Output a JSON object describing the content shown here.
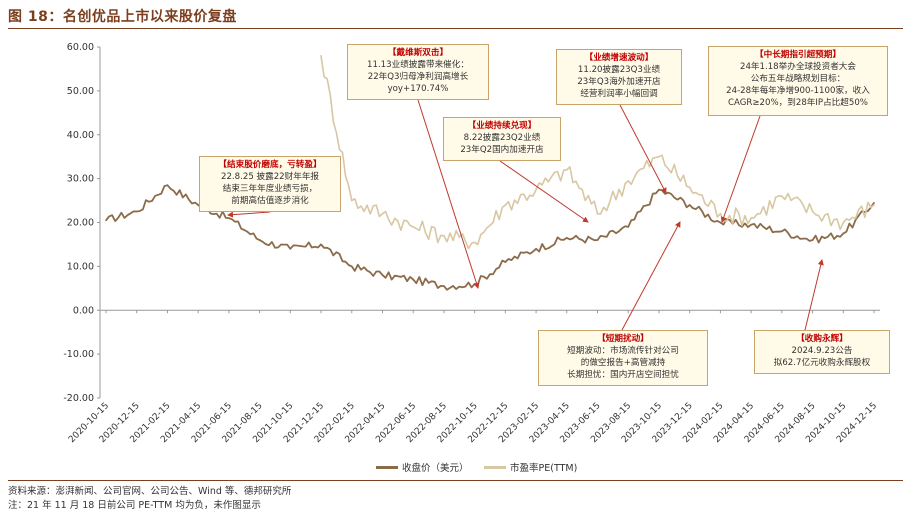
{
  "figure": {
    "title": "图 18：名创优品上市以来股价复盘",
    "source": "资料来源：澎湃新闻、公司官网、公司公告、Wind 等、德邦研究所",
    "note": "注：21 年 11 月 18 日前公司 PE-TTM 均为负，未作图显示"
  },
  "colors": {
    "close": "#8b6b4a",
    "pe": "#d8c7a3",
    "title": "#7b3f1f",
    "annotation_head": "#c00000",
    "arrow": "#c0392b"
  },
  "annotations": [
    {
      "id": "a1",
      "title": "【戴维斯双击】",
      "lines": [
        "11.13业绩披露带来催化：",
        "22年Q3归母净利润高增长",
        "yoy+170.74%"
      ]
    },
    {
      "id": "a2",
      "title": "【结束股价磨底，亏转盈】",
      "lines": [
        "22.8.25  披露22财年年报",
        "结束三年年度业绩亏损，",
        "前期高估值逐步消化"
      ]
    },
    {
      "id": "a3",
      "title": "【业绩持续兑现】",
      "lines": [
        "8.22披露23Q2业绩",
        "23年Q2国内加速开店"
      ]
    },
    {
      "id": "a4",
      "title": "【业绩增速波动】",
      "lines": [
        "11.20披露23Q3业绩",
        "23年Q3海外加速开店",
        "经营利润率小幅回调"
      ]
    },
    {
      "id": "a5",
      "title": "【中长期指引超预期】",
      "lines": [
        "24年1.18举办全球投资者大会",
        "公布五年战略规划目标：",
        "24-28年每年净增900-1100家，收入",
        "CAGR≥20%，到28年IP占比超50%"
      ]
    },
    {
      "id": "a6",
      "title": "【短期扰动】",
      "lines": [
        "短期波动：市场流传针对公司",
        "的做空报告+高管减持",
        "长期担忧：国内开店空间担忧"
      ]
    },
    {
      "id": "a7",
      "title": "【收购永辉】",
      "lines": [
        "2024.9.23公告",
        "拟62.7亿元收购永辉股权"
      ]
    }
  ],
  "chart_data": {
    "type": "line",
    "title": "图 18：名创优品上市以来股价复盘",
    "ylim": [
      -20,
      60
    ],
    "yticks": [
      "60.00",
      "50.00",
      "40.00",
      "30.00",
      "20.00",
      "10.00",
      "0.00",
      "-10.00",
      "-20.00"
    ],
    "ytick_values": [
      60,
      50,
      40,
      30,
      20,
      10,
      0,
      -10,
      -20
    ],
    "grid": false,
    "legend_position": "bottom",
    "categories": [
      "2020-10-15",
      "2020-12-15",
      "2021-02-15",
      "2021-04-15",
      "2021-06-15",
      "2021-08-15",
      "2021-10-15",
      "2021-12-15",
      "2022-02-15",
      "2022-04-15",
      "2022-06-15",
      "2022-08-15",
      "2022-10-15",
      "2022-12-15",
      "2023-02-15",
      "2023-04-15",
      "2023-06-15",
      "2023-08-15",
      "2023-10-15",
      "2023-12-15",
      "2024-02-15",
      "2024-04-15",
      "2024-06-15",
      "2024-08-15",
      "2024-10-15",
      "2024-12-15"
    ],
    "series": [
      {
        "name": "收盘价（美元）",
        "values": [
          20.5,
          22.5,
          28.5,
          24.0,
          21.0,
          16.0,
          14.0,
          15.0,
          10.0,
          8.0,
          7.0,
          5.5,
          6.0,
          11.0,
          14.0,
          16.5,
          16.0,
          19.0,
          27.5,
          24.0,
          20.0,
          19.5,
          18.0,
          16.0,
          17.5,
          24.5
        ]
      },
      {
        "name": "市盈率PE(TTM)",
        "values": [
          null,
          null,
          null,
          null,
          null,
          null,
          null,
          58.0,
          25.0,
          22.0,
          19.0,
          17.0,
          15.5,
          24.0,
          27.5,
          32.0,
          22.0,
          29.5,
          35.0,
          28.0,
          22.0,
          21.0,
          26.0,
          22.5,
          20.0,
          24.0
        ]
      }
    ]
  }
}
